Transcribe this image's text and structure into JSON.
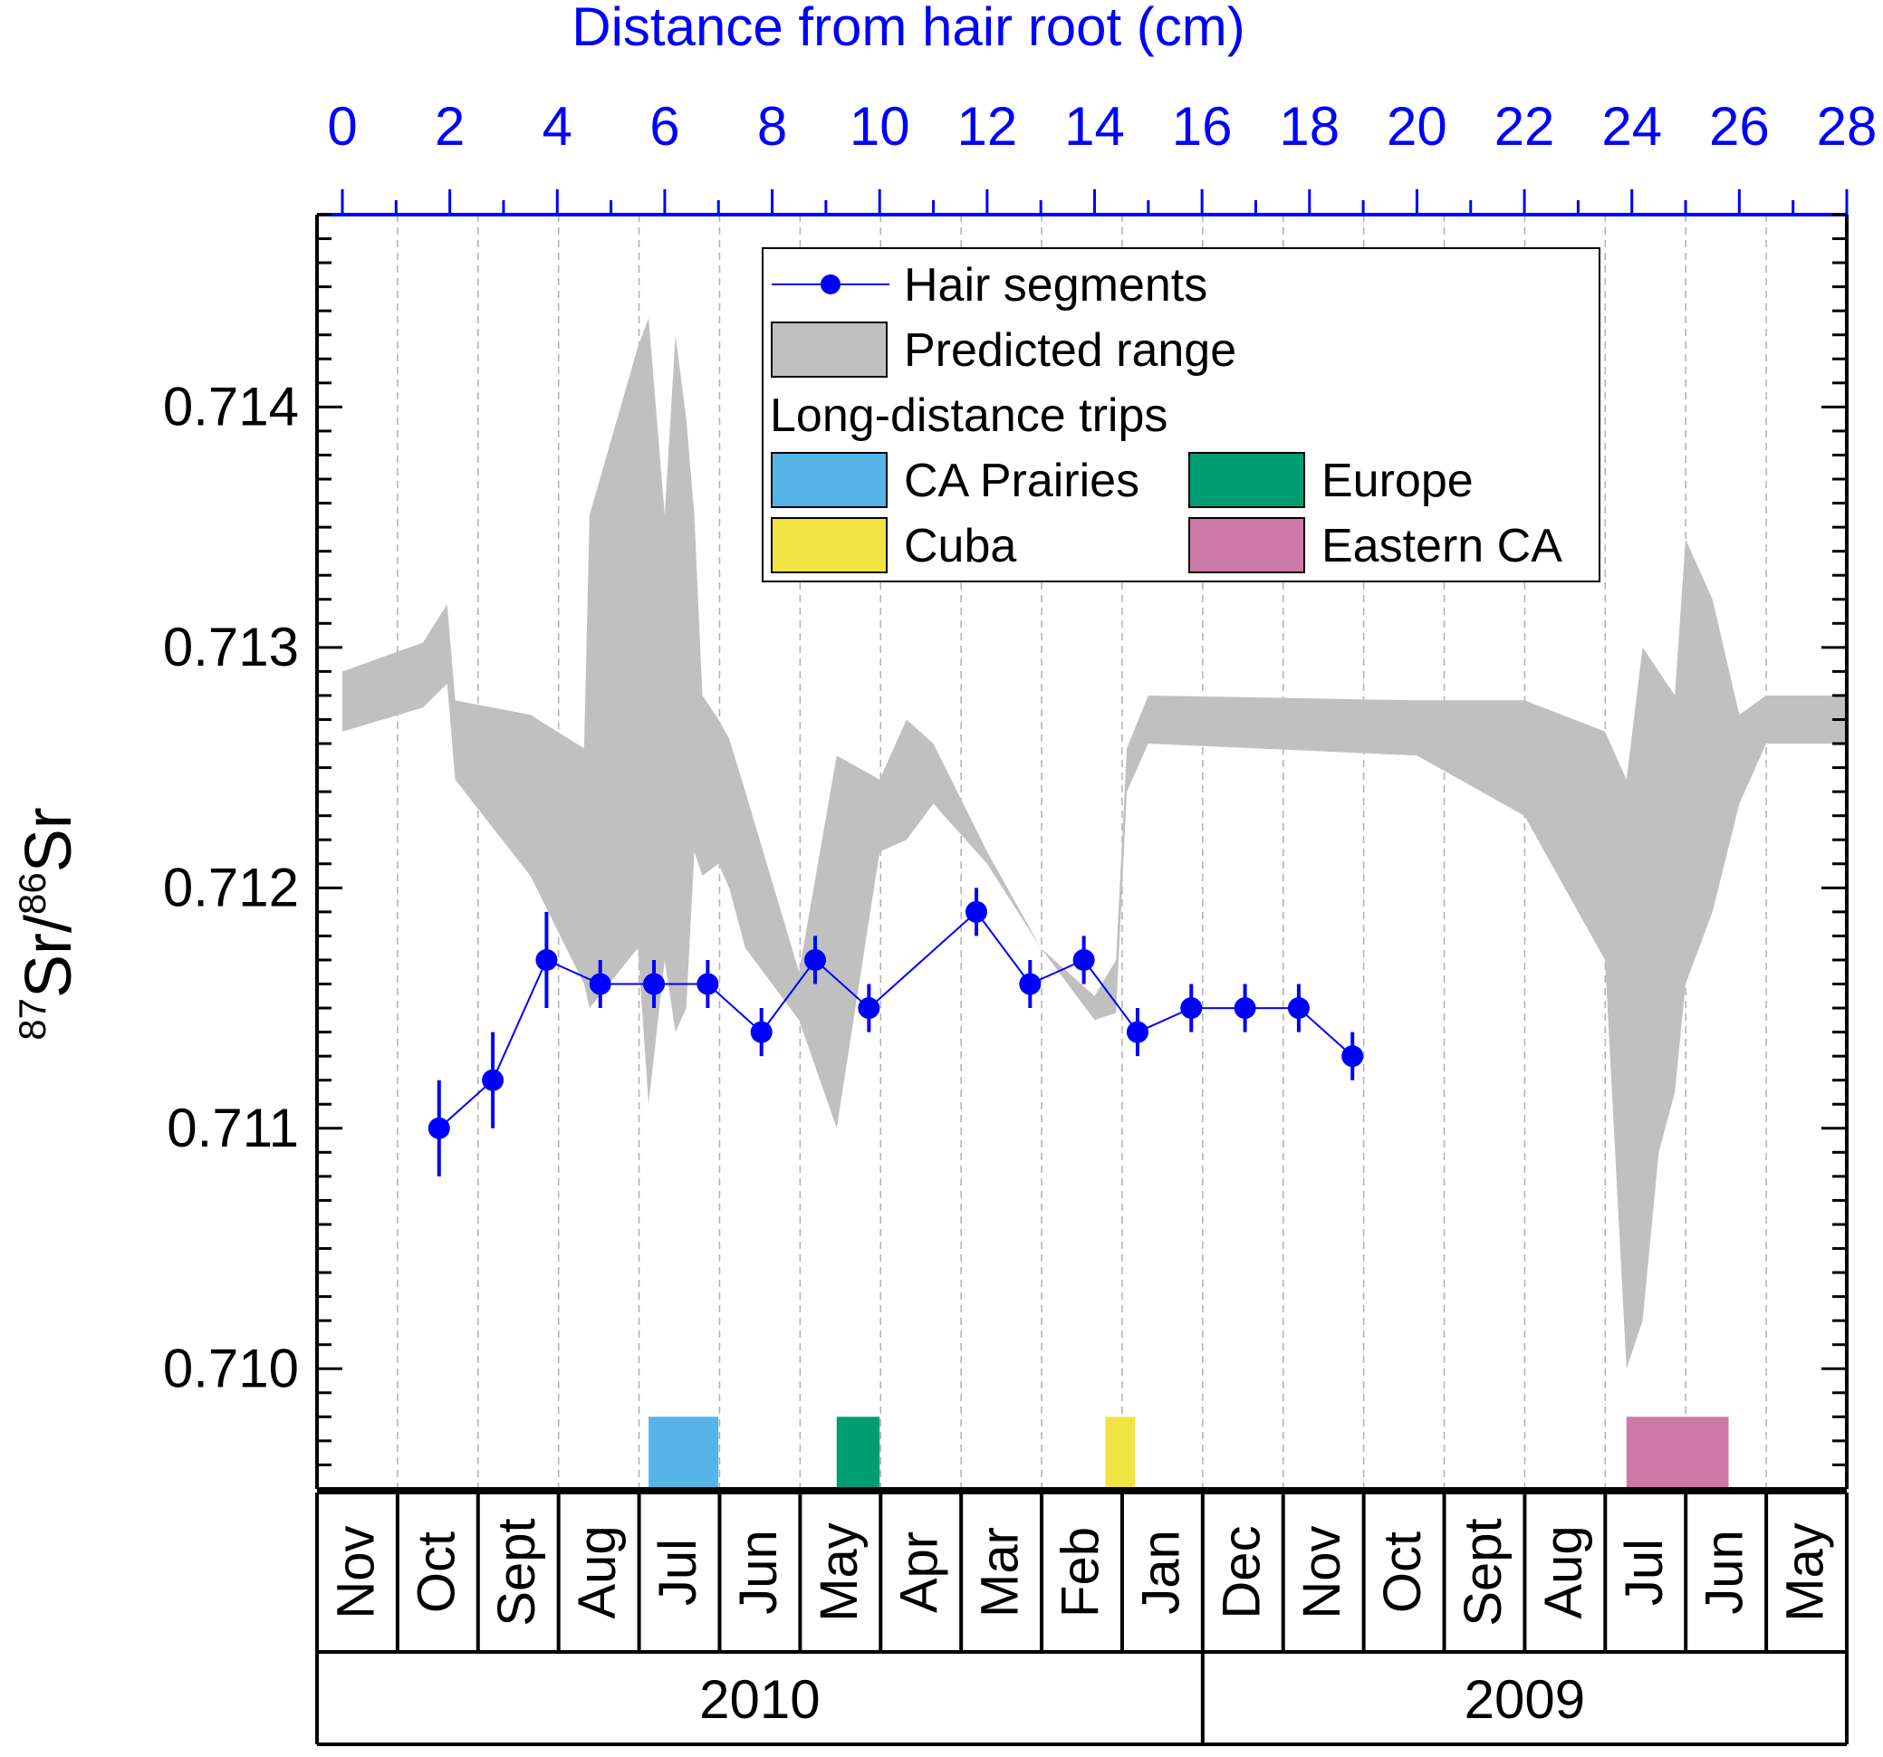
{
  "chart_data": {
    "type": "line",
    "top_axis": {
      "label": "Distance from hair root (cm)",
      "range": [
        0,
        28
      ],
      "ticks": [
        "0",
        "2",
        "4",
        "6",
        "8",
        "10",
        "12",
        "14",
        "16",
        "18",
        "20",
        "22",
        "24",
        "26",
        "28"
      ],
      "color": "#0000ff"
    },
    "y_axis": {
      "label_prefix_sup": "87",
      "label_main": "Sr/",
      "label_sup2": "86",
      "label_end": "Sr",
      "range": [
        0.7095,
        0.7148
      ],
      "ticks": [
        "0.710",
        "0.711",
        "0.712",
        "0.713",
        "0.714"
      ]
    },
    "months": [
      "Nov",
      "Oct",
      "Sept",
      "Aug",
      "Jul",
      "Jun",
      "May",
      "Apr",
      "Mar",
      "Feb",
      "Jan",
      "Dec",
      "Nov",
      "Oct",
      "Sept",
      "Aug",
      "Jul",
      "Jun",
      "May"
    ],
    "years": [
      {
        "label": "2010",
        "from_month": 0,
        "to_month": 11
      },
      {
        "label": "2009",
        "from_month": 11,
        "to_month": 19
      }
    ],
    "series": [
      {
        "name": "Hair segments",
        "color": "#0000ff",
        "x": [
          1.8,
          2.8,
          3.8,
          4.8,
          5.8,
          6.8,
          7.8,
          8.8,
          9.8,
          11.8,
          12.8,
          13.8,
          14.8,
          15.8,
          16.8,
          17.8,
          18.8
        ],
        "y": [
          0.711,
          0.7112,
          0.7117,
          0.7116,
          0.7116,
          0.7116,
          0.7114,
          0.7117,
          0.7115,
          0.7119,
          0.7116,
          0.7117,
          0.7114,
          0.7115,
          0.7115,
          0.7115,
          0.7113
        ],
        "err": [
          0.0002,
          0.0002,
          0.0002,
          0.0001,
          0.0001,
          0.0001,
          0.0001,
          0.0001,
          0.0001,
          0.0001,
          0.0001,
          0.0001,
          0.0001,
          0.0001,
          0.0001,
          0.0001,
          0.0001
        ]
      }
    ],
    "predicted_range": {
      "name": "Predicted range",
      "color": "#c0c0c0",
      "x": [
        0,
        1.5,
        1.95,
        2.1,
        3.5,
        4.5,
        4.6,
        5.5,
        5.7,
        6.0,
        6.2,
        6.4,
        6.55,
        6.7,
        7.0,
        7.2,
        7.5,
        8.5,
        9.2,
        10.0,
        10.5,
        11.0,
        12.0,
        13.0,
        14.0,
        14.4,
        14.6,
        15.0,
        20.0,
        22.0,
        23.5,
        23.9,
        24.2,
        24.5,
        24.8,
        25.0,
        25.5,
        26.0,
        26.5,
        28.0
      ],
      "upper": [
        0.7129,
        0.71302,
        0.71318,
        0.71278,
        0.71272,
        0.71258,
        0.71355,
        0.71425,
        0.71437,
        0.71355,
        0.7143,
        0.71395,
        0.71355,
        0.7128,
        0.7127,
        0.71262,
        0.7124,
        0.71165,
        0.71255,
        0.71245,
        0.7127,
        0.7126,
        0.71215,
        0.71175,
        0.71155,
        0.7117,
        0.71258,
        0.7128,
        0.71278,
        0.71278,
        0.71265,
        0.71245,
        0.713,
        0.7129,
        0.7128,
        0.71345,
        0.7132,
        0.71272,
        0.7128,
        0.7128
      ],
      "lower": [
        0.71265,
        0.71275,
        0.71285,
        0.71245,
        0.71205,
        0.7116,
        0.7115,
        0.71175,
        0.7111,
        0.7117,
        0.7114,
        0.7115,
        0.71215,
        0.71205,
        0.7121,
        0.712,
        0.71175,
        0.71145,
        0.711,
        0.71215,
        0.7122,
        0.71235,
        0.7121,
        0.71175,
        0.71145,
        0.71148,
        0.7124,
        0.7126,
        0.71255,
        0.7123,
        0.7117,
        0.71,
        0.7102,
        0.7109,
        0.71115,
        0.7116,
        0.7119,
        0.71235,
        0.7126,
        0.7126
      ]
    },
    "trips": [
      {
        "name": "CA Prairies",
        "color": "#56b4e9",
        "x0": 5.7,
        "x1": 7.0
      },
      {
        "name": "Europe",
        "color": "#009e73",
        "x0": 9.2,
        "x1": 10.0
      },
      {
        "name": "Cuba",
        "color": "#f0e442",
        "x0": 14.2,
        "x1": 14.75
      },
      {
        "name": "Eastern CA",
        "color": "#cc79a7",
        "x0": 23.9,
        "x1": 25.8
      }
    ],
    "legend": {
      "items_title": "Long-distance trips",
      "placement": "top-center"
    },
    "grid": "vertical dashed at month boundaries"
  }
}
